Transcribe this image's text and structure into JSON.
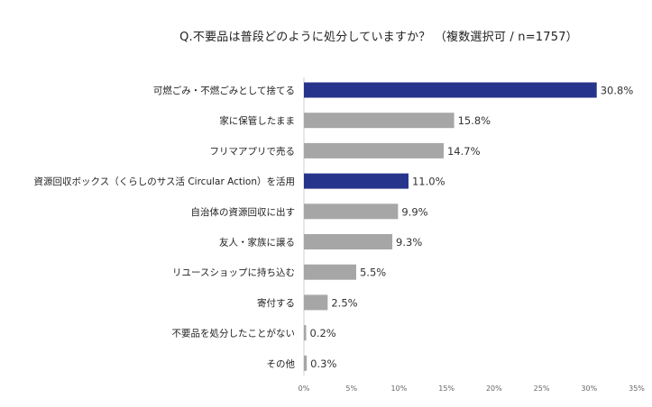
{
  "chart_data": {
    "type": "bar",
    "orientation": "horizontal",
    "title": "Q.不要品は普段どのように処分していますか？ （複数選択可 / n=1757）",
    "categories": [
      "可燃ごみ・不燃ごみとして捨てる",
      "家に保管したまま",
      "フリマアプリで売る",
      "資源回収ボックス（くらしのサス活 Circular Action）を活用",
      "自治体の資源回収に出す",
      "友人・家族に譲る",
      "リユースショップに持ち込む",
      "寄付する",
      "不要品を処分したことがない",
      "その他"
    ],
    "values": [
      30.8,
      15.8,
      14.7,
      11.0,
      9.9,
      9.3,
      5.5,
      2.5,
      0.2,
      0.3
    ],
    "value_labels": [
      "30.8%",
      "15.8%",
      "14.7%",
      "11.0%",
      "9.9%",
      "9.3%",
      "5.5%",
      "2.5%",
      "0.2%",
      "0.3%"
    ],
    "highlighted": [
      true,
      false,
      false,
      true,
      false,
      false,
      false,
      false,
      false,
      false
    ],
    "xlim": [
      0,
      35
    ],
    "xticks": [
      0,
      5,
      10,
      15,
      20,
      25,
      30,
      35
    ],
    "xtick_labels": [
      "0%",
      "5%",
      "10%",
      "15%",
      "20%",
      "25%",
      "30%",
      "35%"
    ],
    "xlabel": "",
    "ylabel": "",
    "grid": false,
    "colors": {
      "highlight": "#27348b",
      "default": "#a6a6a6",
      "axis": "#cfcfcf"
    }
  }
}
